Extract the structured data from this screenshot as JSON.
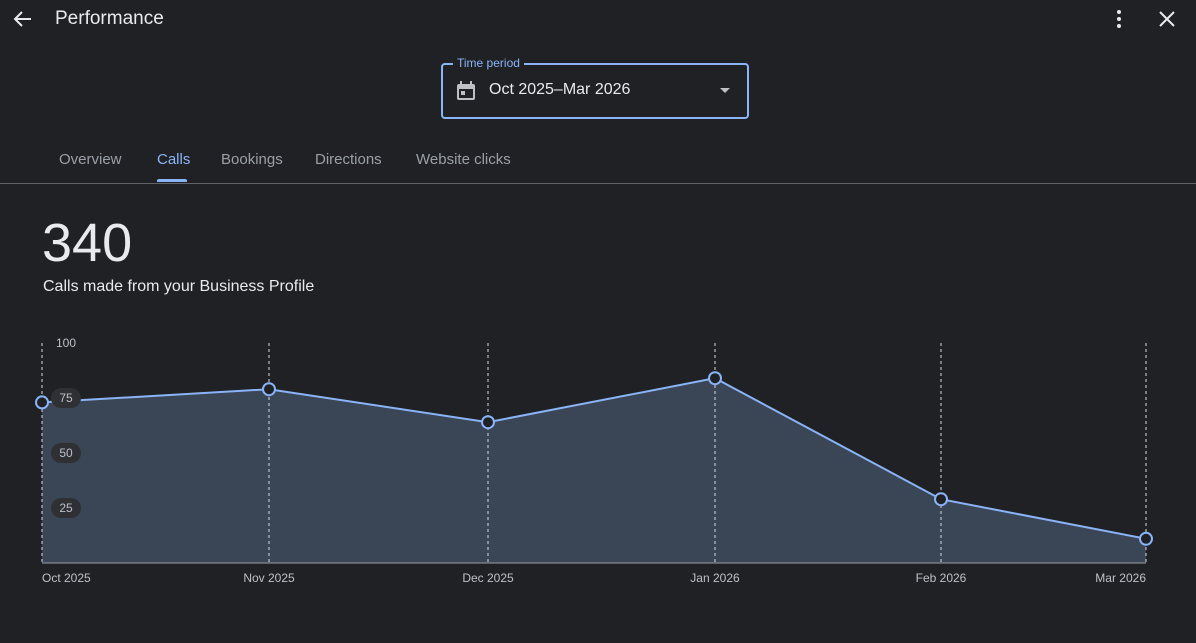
{
  "header": {
    "title": "Performance"
  },
  "time_period": {
    "label": "Time period",
    "value": "Oct 2025–Mar 2026"
  },
  "tabs": [
    {
      "label": "Overview",
      "active": false
    },
    {
      "label": "Calls",
      "active": true
    },
    {
      "label": "Bookings",
      "active": false
    },
    {
      "label": "Directions",
      "active": false
    },
    {
      "label": "Website clicks",
      "active": false
    }
  ],
  "summary": {
    "total": "340",
    "description": "Calls made from your Business Profile"
  },
  "colors": {
    "accent": "#8ab4f8",
    "area_fill": "#3a4556",
    "background": "#202124"
  },
  "chart_data": {
    "type": "area",
    "categories": [
      "Oct 2025",
      "Nov 2025",
      "Dec 2025",
      "Jan 2026",
      "Feb 2026",
      "Mar 2026"
    ],
    "series": [
      {
        "values": [
          73,
          79,
          64,
          84,
          29,
          11
        ]
      }
    ],
    "yticks": [
      100,
      75,
      50,
      25
    ],
    "ylim": [
      0,
      100
    ],
    "grid": "vertical-dashed"
  }
}
